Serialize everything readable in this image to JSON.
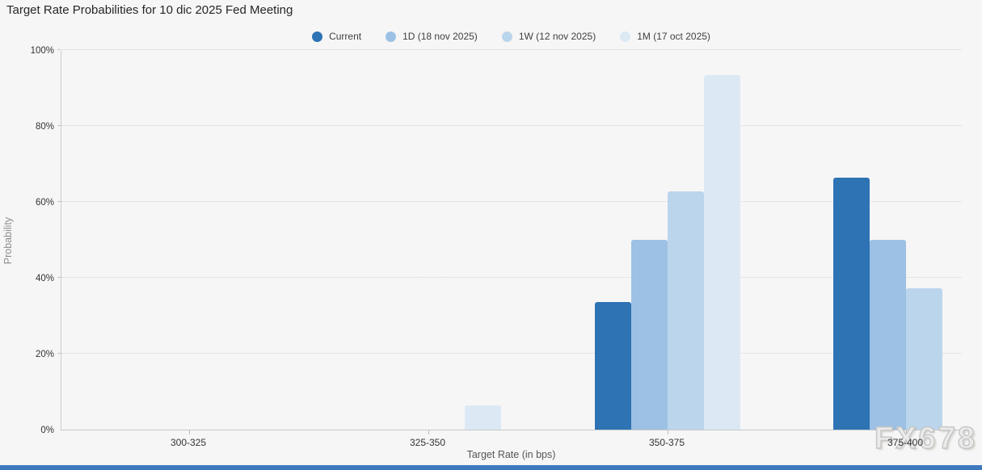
{
  "title": "Target Rate Probabilities for 10 dic 2025 Fed Meeting",
  "watermark": "FX678",
  "chart_data": {
    "type": "bar",
    "title": "Target Rate Probabilities for 10 dic 2025 Fed Meeting",
    "xlabel": "Target Rate (in bps)",
    "ylabel": "Probability",
    "categories": [
      "300-325",
      "325-350",
      "350-375",
      "375-400"
    ],
    "series": [
      {
        "name": "Current",
        "color": "#2e73b4",
        "values": [
          0,
          0,
          33.6,
          66.4
        ]
      },
      {
        "name": "1D (18 nov 2025)",
        "color": "#9cc1e4",
        "values": [
          0,
          0,
          50.1,
          49.9
        ]
      },
      {
        "name": "1W (12 nov 2025)",
        "color": "#bbd5ec",
        "values": [
          0,
          0,
          62.7,
          37.3
        ]
      },
      {
        "name": "1M (17 oct 2025)",
        "color": "#dce9f5",
        "values": [
          0,
          6.3,
          93.4,
          0
        ]
      }
    ],
    "ylim": [
      0,
      100
    ],
    "ytick_labels": [
      "0%",
      "20%",
      "40%",
      "60%",
      "80%",
      "100%"
    ],
    "ytick_values": [
      0,
      20,
      40,
      60,
      80,
      100
    ],
    "grid": "horizontal-dotted",
    "legend_position": "top-center"
  }
}
